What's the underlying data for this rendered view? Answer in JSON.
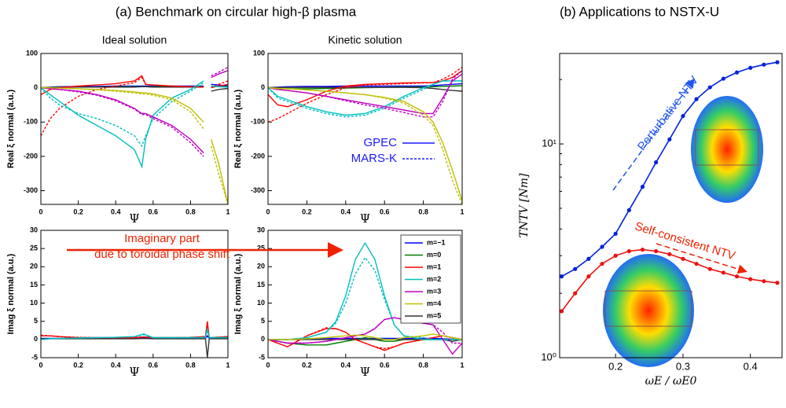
{
  "headings": [
    "(a) Benchmark on circular high-β plasma",
    "(b) Applications to NSTX-U"
  ],
  "annotations": [
    "Imaginary part",
    "due to toroidal phase shift"
  ],
  "chart_data": [
    {
      "type": "line",
      "title": "Ideal solution",
      "xlabel": "Ψ",
      "ylabel": "Real ξ normal (a.u.)",
      "xlim": [
        0,
        1
      ],
      "xticks": [
        0,
        0.2,
        0.4,
        0.6,
        0.8,
        1
      ],
      "ylim": [
        -340,
        100
      ],
      "yticks": [
        -300,
        -200,
        -100,
        0,
        100
      ],
      "x": [
        0,
        0.05,
        0.1,
        0.2,
        0.3,
        0.4,
        0.5,
        0.54,
        0.56,
        0.6,
        0.7,
        0.8,
        0.87,
        0.89,
        0.91,
        0.95,
        1
      ],
      "series": [
        {
          "color": "#0000ff",
          "dash": false,
          "values": [
            0,
            2,
            3,
            4,
            4,
            5,
            5,
            5,
            5,
            5,
            5,
            5,
            5,
            null,
            10,
            8,
            5
          ]
        },
        {
          "color": "#008000",
          "dash": false,
          "values": [
            0,
            1,
            2,
            2,
            2,
            3,
            3,
            3,
            3,
            3,
            3,
            3,
            3,
            null,
            5,
            4,
            3
          ]
        },
        {
          "color": "#333333",
          "dash": false,
          "values": [
            0,
            1,
            1,
            2,
            2,
            2,
            2,
            3,
            3,
            2,
            2,
            2,
            2,
            null,
            -10,
            -5,
            -2
          ]
        },
        {
          "color": "#ff0000",
          "dash": false,
          "values": [
            -20,
            -5,
            0,
            5,
            8,
            12,
            20,
            35,
            10,
            8,
            5,
            3,
            2,
            null,
            0,
            5,
            10
          ]
        },
        {
          "color": "#ff0000",
          "dash": true,
          "values": [
            -140,
            -90,
            -60,
            -25,
            -5,
            5,
            15,
            30,
            10,
            8,
            5,
            3,
            2,
            null,
            0,
            10,
            20
          ]
        },
        {
          "color": "#00bfbf",
          "dash": false,
          "values": [
            0,
            -20,
            -40,
            -80,
            -110,
            -140,
            -180,
            -230,
            -150,
            -80,
            -30,
            -5,
            20,
            null,
            5,
            3,
            2
          ]
        },
        {
          "color": "#00bfbf",
          "dash": true,
          "values": [
            0,
            -30,
            -50,
            -75,
            -90,
            -110,
            -140,
            -170,
            -140,
            -90,
            -40,
            -10,
            15,
            null,
            5,
            3,
            2
          ]
        },
        {
          "color": "#bf00bf",
          "dash": false,
          "values": [
            0,
            -3,
            -5,
            -10,
            -20,
            -35,
            -60,
            -75,
            -75,
            -85,
            -110,
            -150,
            -190,
            null,
            30,
            40,
            50
          ]
        },
        {
          "color": "#bf00bf",
          "dash": true,
          "values": [
            0,
            -3,
            -5,
            -12,
            -22,
            -38,
            -62,
            -78,
            -78,
            -90,
            -115,
            -160,
            -200,
            null,
            35,
            45,
            60
          ]
        },
        {
          "color": "#bfbf00",
          "dash": false,
          "values": [
            0,
            0,
            -1,
            -3,
            -5,
            -8,
            -12,
            -15,
            -15,
            -18,
            -30,
            -60,
            -100,
            null,
            -150,
            -220,
            -340
          ]
        },
        {
          "color": "#bfbf00",
          "dash": true,
          "values": [
            0,
            0,
            -1,
            -3,
            -6,
            -10,
            -15,
            -18,
            -18,
            -22,
            -35,
            -70,
            -120,
            null,
            -170,
            -250,
            -340
          ]
        }
      ]
    },
    {
      "type": "line",
      "title": "Kinetic solution",
      "xlabel": "Ψ",
      "ylabel": "Real ξ normal (a.u.)",
      "xlim": [
        0,
        1
      ],
      "xticks": [
        0,
        0.2,
        0.4,
        0.6,
        0.8,
        1
      ],
      "ylim": [
        -340,
        100
      ],
      "yticks": [
        -300,
        -200,
        -100,
        0,
        100
      ],
      "legend": {
        "color": "#1a1aff",
        "entries": [
          {
            "label": "GPEC",
            "dash": false
          },
          {
            "label": "MARS-K",
            "dash": true
          }
        ]
      },
      "x": [
        0,
        0.05,
        0.1,
        0.2,
        0.3,
        0.4,
        0.5,
        0.6,
        0.7,
        0.8,
        0.85,
        0.9,
        0.95,
        1
      ],
      "series": [
        {
          "color": "#0000ff",
          "dash": false,
          "values": [
            0,
            2,
            3,
            4,
            4,
            5,
            5,
            5,
            5,
            5,
            6,
            8,
            10,
            12
          ]
        },
        {
          "color": "#008000",
          "dash": false,
          "values": [
            0,
            -2,
            -3,
            -3,
            -2,
            -1,
            0,
            1,
            2,
            2,
            3,
            4,
            5,
            6
          ]
        },
        {
          "color": "#333333",
          "dash": false,
          "values": [
            0,
            1,
            1,
            1,
            1,
            1,
            1,
            1,
            1,
            0,
            -2,
            -5,
            -8,
            -10
          ]
        },
        {
          "color": "#ff0000",
          "dash": false,
          "values": [
            -20,
            -50,
            -55,
            -35,
            -10,
            5,
            10,
            12,
            14,
            15,
            15,
            20,
            30,
            50
          ]
        },
        {
          "color": "#ff0000",
          "dash": true,
          "values": [
            -100,
            -90,
            -75,
            -45,
            -20,
            0,
            8,
            10,
            12,
            14,
            15,
            25,
            40,
            60
          ]
        },
        {
          "color": "#00bfbf",
          "dash": false,
          "values": [
            0,
            -25,
            -35,
            -55,
            -70,
            -80,
            -75,
            -55,
            -25,
            0,
            10,
            20,
            20,
            20
          ]
        },
        {
          "color": "#00bfbf",
          "dash": true,
          "values": [
            0,
            -30,
            -40,
            -60,
            -75,
            -85,
            -80,
            -60,
            -30,
            -5,
            10,
            20,
            20,
            20
          ]
        },
        {
          "color": "#bf00bf",
          "dash": false,
          "values": [
            0,
            -5,
            -8,
            -15,
            -25,
            -35,
            -45,
            -55,
            -65,
            -75,
            -75,
            -30,
            20,
            40
          ]
        },
        {
          "color": "#bf00bf",
          "dash": true,
          "values": [
            0,
            -5,
            -8,
            -15,
            -25,
            -38,
            -50,
            -60,
            -72,
            -85,
            -85,
            -40,
            25,
            50
          ]
        },
        {
          "color": "#bfbf00",
          "dash": false,
          "values": [
            0,
            -2,
            -3,
            -6,
            -10,
            -15,
            -20,
            -28,
            -40,
            -70,
            -100,
            -160,
            -240,
            -330
          ]
        },
        {
          "color": "#bfbf00",
          "dash": true,
          "values": [
            0,
            -2,
            -3,
            -6,
            -10,
            -15,
            -20,
            -30,
            -45,
            -80,
            -110,
            -180,
            -270,
            -340
          ]
        }
      ]
    },
    {
      "type": "line",
      "xlabel": "Ψ",
      "ylabel": "Imag ξ normal (a.u.)",
      "xlim": [
        0,
        1
      ],
      "xticks": [
        0,
        0.2,
        0.4,
        0.6,
        0.8,
        1
      ],
      "ylim": [
        -5,
        30
      ],
      "yticks": [
        -5,
        0,
        5,
        10,
        15,
        20,
        25,
        30
      ],
      "x": [
        0,
        0.05,
        0.1,
        0.2,
        0.3,
        0.4,
        0.5,
        0.55,
        0.6,
        0.7,
        0.8,
        0.88,
        0.89,
        0.9,
        1
      ],
      "series": [
        {
          "color": "#0000ff",
          "dash": false,
          "values": [
            0.3,
            0.3,
            0.3,
            0.3,
            0.3,
            0.3,
            0.3,
            0.4,
            0.3,
            0.3,
            0.3,
            0.3,
            1,
            0.3,
            0.3
          ]
        },
        {
          "color": "#333333",
          "dash": false,
          "values": [
            0.2,
            0.2,
            0.2,
            0.2,
            0.2,
            0.2,
            0.2,
            0.3,
            0.2,
            0.2,
            0.2,
            0.2,
            -5,
            0.2,
            0.2
          ]
        },
        {
          "color": "#ff0000",
          "dash": false,
          "values": [
            1,
            1,
            0.8,
            0.5,
            0.5,
            0.5,
            0.5,
            0.7,
            0.5,
            0.5,
            0.6,
            0.8,
            5,
            0.5,
            0.8
          ]
        },
        {
          "color": "#ff0000",
          "dash": true,
          "values": [
            1.2,
            1,
            0.8,
            0.6,
            0.5,
            0.5,
            0.5,
            0.7,
            0.5,
            0.5,
            0.6,
            0.8,
            4,
            0.5,
            0.8
          ]
        },
        {
          "color": "#00bfbf",
          "dash": false,
          "values": [
            0,
            0.2,
            0.3,
            0.4,
            0.5,
            0.6,
            0.8,
            1.5,
            0.5,
            0.5,
            0.5,
            0.5,
            3,
            0.5,
            0.5
          ]
        },
        {
          "color": "#00bfbf",
          "dash": true,
          "values": [
            0,
            0.2,
            0.3,
            0.4,
            0.5,
            0.6,
            0.8,
            1.3,
            0.5,
            0.5,
            0.5,
            0.5,
            2.5,
            0.5,
            0.5
          ]
        }
      ]
    },
    {
      "type": "line",
      "xlabel": "Ψ",
      "ylabel": "Imag ξ normal (a.u.)",
      "xlim": [
        0,
        1
      ],
      "xticks": [
        0,
        0.2,
        0.4,
        0.6,
        0.8,
        1
      ],
      "ylim": [
        -5,
        30
      ],
      "yticks": [
        -5,
        0,
        5,
        10,
        15,
        20,
        25,
        30
      ],
      "legend": {
        "entries": [
          {
            "label": "m=−1",
            "color": "#0000ff"
          },
          {
            "label": "m=0",
            "color": "#008000"
          },
          {
            "label": "m=1",
            "color": "#ff0000"
          },
          {
            "label": "m=2",
            "color": "#00bfbf"
          },
          {
            "label": "m=3",
            "color": "#bf00bf"
          },
          {
            "label": "m=4",
            "color": "#bfbf00"
          },
          {
            "label": "m=5",
            "color": "#333333"
          }
        ]
      },
      "x": [
        0,
        0.05,
        0.1,
        0.2,
        0.3,
        0.35,
        0.4,
        0.45,
        0.5,
        0.55,
        0.6,
        0.65,
        0.7,
        0.8,
        0.85,
        0.9,
        0.95,
        1
      ],
      "series": [
        {
          "color": "#0000ff",
          "dash": false,
          "values": [
            0,
            0,
            0,
            0.2,
            0.3,
            0.3,
            0.3,
            0.3,
            0.3,
            0.3,
            0.3,
            0.3,
            0.3,
            0.3,
            0.3,
            0.2,
            0.1,
            0
          ]
        },
        {
          "color": "#008000",
          "dash": false,
          "values": [
            0,
            -0.5,
            -1,
            -1.5,
            -1.5,
            -1,
            -0.5,
            0,
            0.5,
            0,
            -0.5,
            -0.5,
            0,
            0,
            0,
            0,
            0,
            0
          ]
        },
        {
          "color": "#333333",
          "dash": false,
          "values": [
            0,
            0,
            0,
            0,
            0,
            0,
            0,
            0,
            0,
            0,
            0,
            0,
            0,
            0,
            0,
            0,
            -0.5,
            0
          ]
        },
        {
          "color": "#ff0000",
          "dash": false,
          "values": [
            0,
            -1,
            -2,
            1,
            3,
            3,
            2,
            0,
            -1,
            -2,
            -3,
            -2,
            -1,
            0,
            0.5,
            1,
            0.5,
            0
          ]
        },
        {
          "color": "#ff0000",
          "dash": true,
          "values": [
            0,
            -1,
            -2,
            1,
            3.2,
            3,
            2,
            0,
            -1,
            -2,
            -2.5,
            -2,
            -1,
            0,
            0.5,
            1,
            0.5,
            0
          ]
        },
        {
          "color": "#00bfbf",
          "dash": false,
          "values": [
            0,
            0,
            0,
            0.5,
            2,
            5,
            12,
            22,
            26.5,
            22,
            12,
            4,
            1,
            0,
            0,
            0,
            0,
            0
          ]
        },
        {
          "color": "#00bfbf",
          "dash": true,
          "values": [
            0,
            0,
            0,
            0.5,
            2,
            4.5,
            10,
            18,
            22.5,
            19,
            11,
            4,
            1,
            0.5,
            0,
            0,
            0,
            0
          ]
        },
        {
          "color": "#bf00bf",
          "dash": false,
          "values": [
            0,
            -0.5,
            -1,
            -1,
            -0.5,
            0,
            0.5,
            1,
            1.5,
            3,
            5.5,
            6,
            5.5,
            4.5,
            4,
            0,
            -4,
            -1
          ]
        },
        {
          "color": "#bf00bf",
          "dash": true,
          "values": [
            0,
            -0.5,
            -1,
            -1,
            -0.5,
            0,
            0.5,
            1,
            1.5,
            3,
            5.5,
            6,
            5.5,
            4.5,
            4,
            2,
            -1,
            -1
          ]
        },
        {
          "color": "#bfbf00",
          "dash": false,
          "values": [
            0,
            0,
            0,
            0.2,
            0.5,
            0.8,
            1,
            1.2,
            1,
            0.5,
            0,
            0,
            0.5,
            1,
            1.5,
            1,
            0.5,
            0
          ]
        }
      ]
    },
    {
      "type": "line",
      "xlabel": "ωE / ωE0",
      "ylabel": "TNTV [Nm]",
      "log_y": true,
      "markers": true,
      "xlim": [
        0.117,
        0.447
      ],
      "xticks": [
        0.2,
        0.3,
        0.4
      ],
      "ylim": [
        1,
        26.5
      ],
      "yticks": [
        {
          "value": 1,
          "label": "10⁰"
        },
        {
          "value": 10,
          "label": "10¹"
        }
      ],
      "annotations": [
        "Perturbative NTV",
        "Self-consistent NTV"
      ],
      "x": [
        0.12,
        0.14,
        0.16,
        0.18,
        0.2,
        0.22,
        0.24,
        0.26,
        0.28,
        0.3,
        0.32,
        0.34,
        0.36,
        0.38,
        0.4,
        0.42,
        0.44
      ],
      "series": [
        {
          "color": "#0022dd",
          "dash": false,
          "values": [
            2.4,
            2.6,
            2.9,
            3.3,
            3.8,
            4.9,
            6.3,
            8.2,
            10.5,
            13.5,
            16.2,
            18.4,
            20.2,
            21.6,
            22.7,
            23.5,
            24.1
          ]
        },
        {
          "color": "#ee1111",
          "dash": false,
          "values": [
            1.65,
            2.0,
            2.4,
            2.75,
            3.0,
            3.15,
            3.2,
            3.15,
            3.05,
            2.9,
            2.75,
            2.6,
            2.5,
            2.4,
            2.33,
            2.28,
            2.24
          ]
        }
      ]
    }
  ]
}
